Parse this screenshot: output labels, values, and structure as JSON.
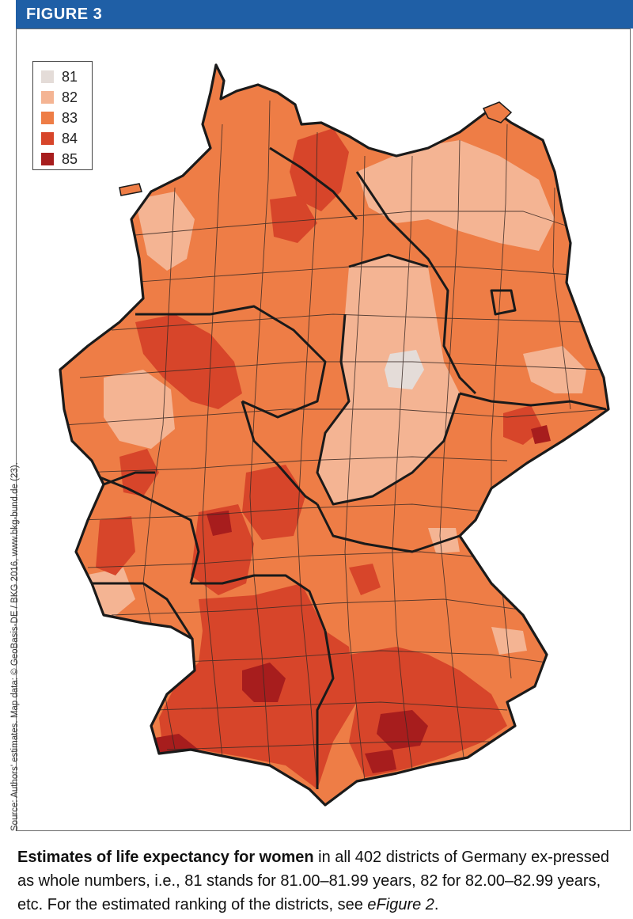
{
  "header": {
    "title": "FIGURE 3"
  },
  "legend": {
    "items": [
      {
        "label": "81",
        "color": "#e4dcd8"
      },
      {
        "label": "82",
        "color": "#f4b493"
      },
      {
        "label": "83",
        "color": "#ee7d46"
      },
      {
        "label": "84",
        "color": "#d7452a"
      },
      {
        "label": "85",
        "color": "#a71d1d"
      }
    ]
  },
  "map": {
    "region": "Germany",
    "border_color": "#1a1a1a",
    "district_line_color": "#3a2a25"
  },
  "source": "Source: Authors' estimates. Map data: © GeoBasis-DE / BKG 2016, www.bkg-bund.de (23).",
  "caption": {
    "bold": "Estimates of life expectancy for women",
    "text": " in all 402 districts of Germany ex-pressed as whole numbers, i.e., 81 stands for 81.00–81.99 years, 82 for 82.00–82.99 years, etc. For the estimated ranking of the districts, see ",
    "link": "eFigure 2",
    "end": "."
  }
}
